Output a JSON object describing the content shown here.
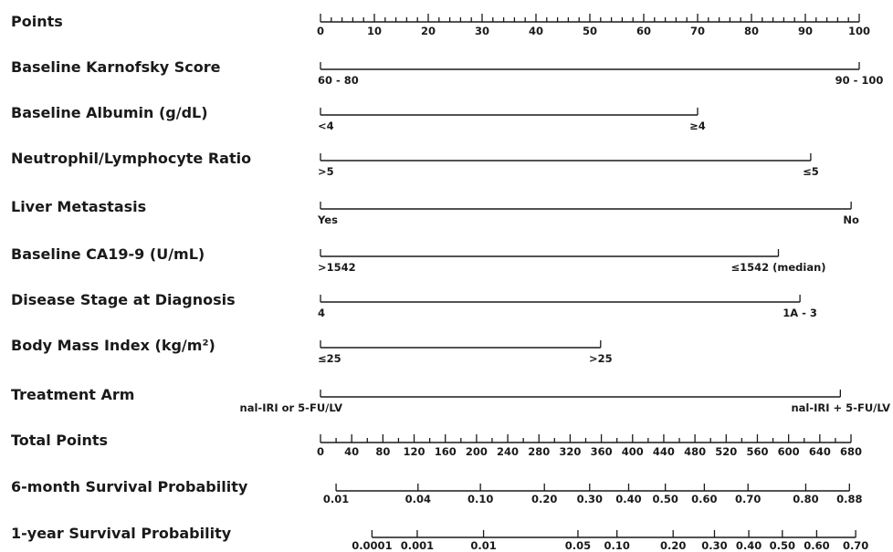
{
  "chart_data": {
    "type": "nomogram",
    "points_scale": {
      "label": "Points",
      "min": 0,
      "max": 100,
      "major_step": 10,
      "minor_step": 2,
      "labels": [
        "0",
        "10",
        "20",
        "30",
        "40",
        "50",
        "60",
        "70",
        "80",
        "90",
        "100"
      ]
    },
    "predictors": [
      {
        "label": "Baseline Karnofsky Score",
        "levels": [
          {
            "text": "60 - 80",
            "points": 0
          },
          {
            "text": "90 - 100",
            "points": 100
          }
        ]
      },
      {
        "label": "Baseline Albumin (g/dL)",
        "levels": [
          {
            "text": "<4",
            "points": 0
          },
          {
            "text": "≥4",
            "points": 70
          }
        ]
      },
      {
        "label": "Neutrophil/Lymphocyte Ratio",
        "levels": [
          {
            "text": ">5",
            "points": 0
          },
          {
            "text": "≤5",
            "points": 91
          }
        ]
      },
      {
        "label": "Liver Metastasis",
        "levels": [
          {
            "text": "Yes",
            "points": 0
          },
          {
            "text": "No",
            "points": 98.5
          }
        ]
      },
      {
        "label": "Baseline CA19-9 (U/mL)",
        "levels": [
          {
            "text": ">1542",
            "points": 0
          },
          {
            "text": "≤1542 (median)",
            "points": 85
          }
        ]
      },
      {
        "label": "Disease Stage at Diagnosis",
        "levels": [
          {
            "text": "4",
            "points": 0
          },
          {
            "text": "1A - 3",
            "points": 89
          }
        ]
      },
      {
        "label": "Body Mass Index (kg/m²)",
        "levels": [
          {
            "text": "≤25",
            "points": 0
          },
          {
            "text": ">25",
            "points": 52
          }
        ]
      },
      {
        "label": "Treatment Arm",
        "levels": [
          {
            "text": "nal-IRI or 5-FU/LV",
            "points": 0
          },
          {
            "text": "nal-IRI + 5-FU/LV",
            "points": 96.5
          }
        ]
      }
    ],
    "total_points": {
      "label": "Total Points",
      "min": 0,
      "max": 680,
      "major_step": 40,
      "minor_step": 20,
      "labels": [
        "0",
        "40",
        "80",
        "120",
        "160",
        "200",
        "240",
        "280",
        "320",
        "360",
        "400",
        "440",
        "480",
        "520",
        "560",
        "600",
        "640",
        "680"
      ]
    },
    "survival_scales": [
      {
        "label": "6-month Survival Probability",
        "ticks": [
          {
            "text": "0.01",
            "total_points": 20
          },
          {
            "text": "0.04",
            "total_points": 125
          },
          {
            "text": "0.10",
            "total_points": 205
          },
          {
            "text": "0.20",
            "total_points": 287
          },
          {
            "text": "0.30",
            "total_points": 345
          },
          {
            "text": "0.40",
            "total_points": 395
          },
          {
            "text": "0.50",
            "total_points": 442
          },
          {
            "text": "0.60",
            "total_points": 492
          },
          {
            "text": "0.70",
            "total_points": 548
          },
          {
            "text": "0.80",
            "total_points": 622
          },
          {
            "text": "0.88",
            "total_points": 678
          }
        ]
      },
      {
        "label": "1-year Survival Probability",
        "ticks": [
          {
            "text": "0.0001",
            "total_points": 66
          },
          {
            "text": "0.001",
            "total_points": 124
          },
          {
            "text": "0.01",
            "total_points": 209
          },
          {
            "text": "0.05",
            "total_points": 330
          },
          {
            "text": "0.10",
            "total_points": 380
          },
          {
            "text": "0.20",
            "total_points": 452
          },
          {
            "text": "0.30",
            "total_points": 505
          },
          {
            "text": "0.40",
            "total_points": 549
          },
          {
            "text": "0.50",
            "total_points": 592
          },
          {
            "text": "0.60",
            "total_points": 636
          },
          {
            "text": "0.70",
            "total_points": 686
          }
        ]
      }
    ]
  }
}
